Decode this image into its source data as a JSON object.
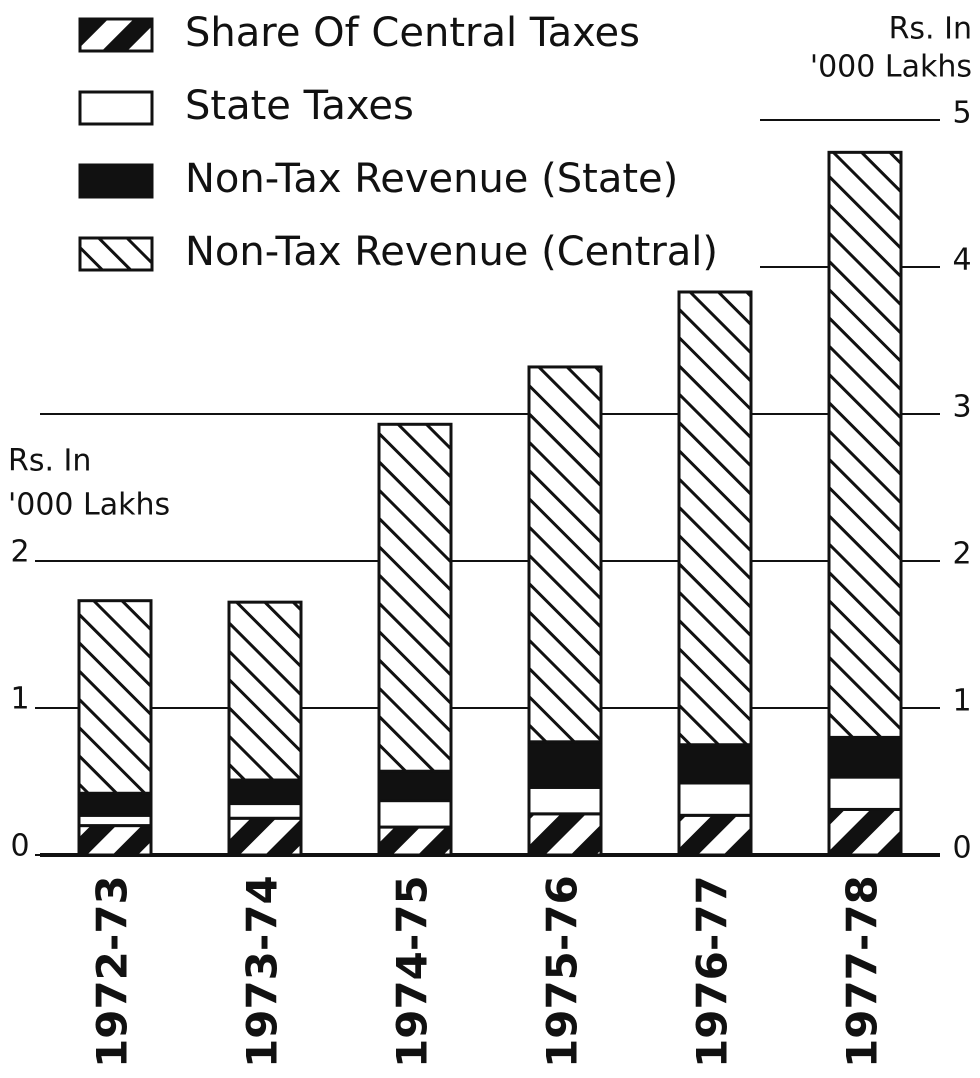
{
  "chart_data": {
    "type": "stacked-bar",
    "categories": [
      "1972-73",
      "1973-74",
      "1974-75",
      "1975-76",
      "1976-77",
      "1977-78"
    ],
    "series": [
      {
        "name": "Share Of Central Taxes",
        "color": "#111",
        "pattern": "bold-stripes",
        "values": [
          0.2,
          0.25,
          0.19,
          0.28,
          0.27,
          0.31
        ]
      },
      {
        "name": "State Taxes",
        "color": "#ffffff",
        "pattern": "none",
        "values": [
          0.07,
          0.1,
          0.18,
          0.18,
          0.22,
          0.22
        ]
      },
      {
        "name": "Non-Tax Revenue (State)",
        "color": "#111",
        "pattern": "solid",
        "values": [
          0.15,
          0.16,
          0.2,
          0.31,
          0.26,
          0.27
        ]
      },
      {
        "name": "Non-Tax Revenue (Central)",
        "color": "#111",
        "pattern": "stripes",
        "values": [
          1.31,
          1.21,
          2.36,
          2.55,
          3.08,
          3.98
        ]
      }
    ],
    "y_label": [
      "Rs. In",
      "'000 Lakhs"
    ],
    "y2_label": [
      "Rs. In",
      "'000 Lakhs"
    ],
    "ylim": [
      0,
      5
    ],
    "yticks": [
      0,
      1,
      2
    ],
    "y2lim": [
      0,
      5
    ],
    "y2ticks": [
      0,
      1,
      2,
      3,
      4,
      5
    ],
    "grid": true,
    "legend": "top-left"
  }
}
